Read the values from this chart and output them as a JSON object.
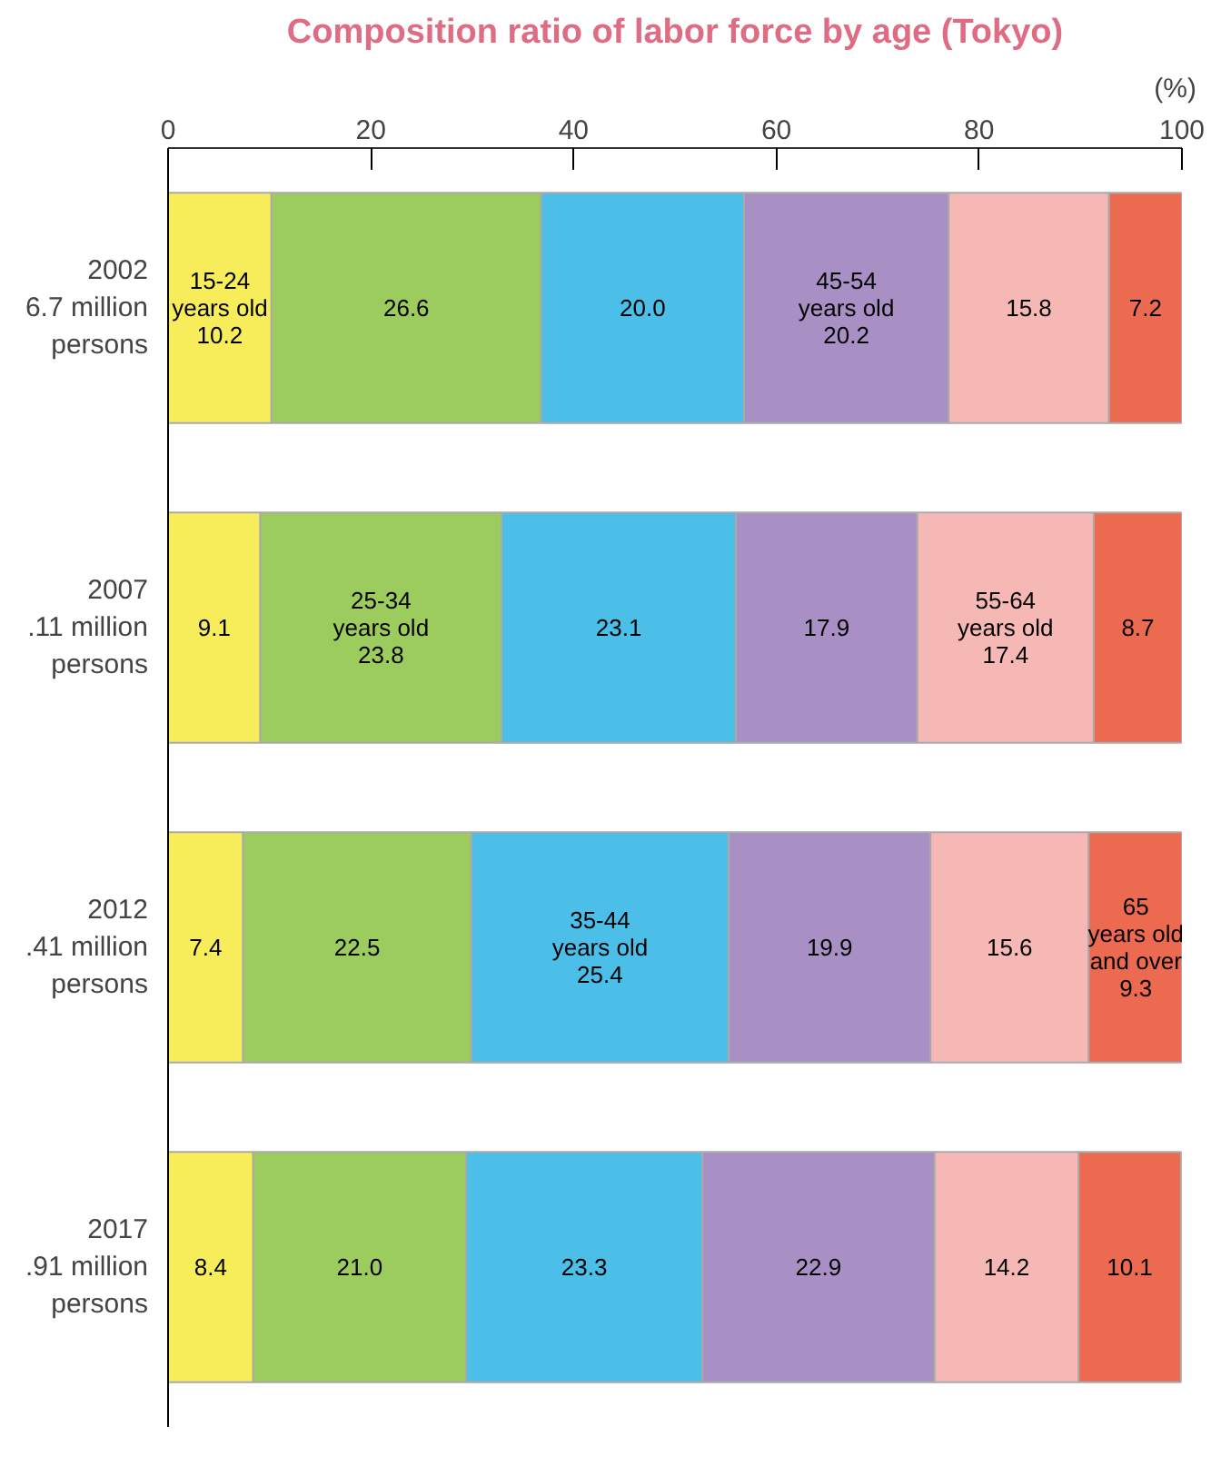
{
  "chart_data": {
    "type": "bar",
    "orientation": "horizontal",
    "stacked": true,
    "title": "Composition ratio of labor force by age (Tokyo)",
    "xlabel": "(%)",
    "categories": [
      "2002\n6.7 million\npersons",
      "2007\n.11 million\npersons",
      "2012\n.41 million\npersons",
      "2017\n.91 million\npersons"
    ],
    "xlim": [
      0,
      100
    ],
    "xticks": [
      0,
      20,
      40,
      60,
      80,
      100
    ],
    "grid": false,
    "series": [
      {
        "color": "#f7ec5a",
        "values": [
          10.2,
          9.1,
          7.4,
          8.4
        ],
        "value_labels": [
          "15-24\nyears old\n10.2",
          "9.1",
          "7.4",
          "8.4"
        ]
      },
      {
        "color": "#9ccb5e",
        "values": [
          26.6,
          23.8,
          22.5,
          21.0
        ],
        "value_labels": [
          "26.6",
          "25-34\nyears old\n23.8",
          "22.5",
          "21.0"
        ]
      },
      {
        "color": "#4cbfe9",
        "values": [
          20.0,
          23.1,
          25.4,
          23.3
        ],
        "value_labels": [
          "20.0",
          "23.1",
          "35-44\nyears old\n25.4",
          "23.3"
        ]
      },
      {
        "color": "#a890c4",
        "values": [
          20.2,
          17.9,
          19.9,
          22.9
        ],
        "value_labels": [
          "45-54\nyears old\n20.2",
          "17.9",
          "19.9",
          "22.9"
        ]
      },
      {
        "color": "#f6b8b4",
        "values": [
          15.8,
          17.4,
          15.6,
          14.2
        ],
        "value_labels": [
          "15.8",
          "55-64\nyears old\n17.4",
          "15.6",
          "14.2"
        ]
      },
      {
        "color": "#ec6a50",
        "values": [
          7.2,
          8.7,
          9.3,
          10.1
        ],
        "value_labels": [
          "7.2",
          "8.7",
          "65\nyears old\nand over\n9.3",
          "10.1"
        ]
      }
    ]
  }
}
